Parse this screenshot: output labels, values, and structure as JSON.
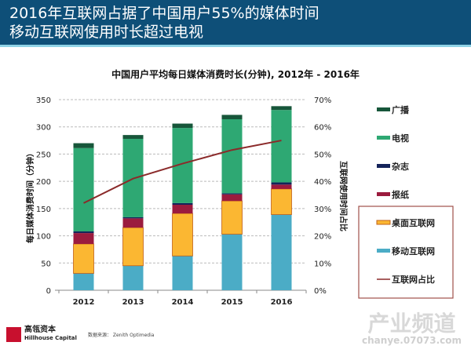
{
  "header": {
    "line1": "2016年互联网占据了中国用户55%的媒体时间",
    "line2": "移动互联网使用时长超过电视"
  },
  "chart_data": {
    "type": "bar",
    "stacked": true,
    "title": "中国用户平均每日媒体消费时长(分钟), 2012年  -  2016年",
    "ylabel": "每日媒体消费时间（分钟）",
    "y2label": "互联网使用时间占比",
    "categories": [
      "2012",
      "2013",
      "2014",
      "2015",
      "2016"
    ],
    "ylim": [
      0,
      350
    ],
    "yticks": [
      "0",
      "50",
      "100",
      "150",
      "200",
      "250",
      "300",
      "350"
    ],
    "y2lim": [
      0,
      70
    ],
    "y2ticks": [
      "0%",
      "10%",
      "20%",
      "30%",
      "40%",
      "50%",
      "60%",
      "70%"
    ],
    "grid": true,
    "legend_position": "right",
    "series": [
      {
        "name": "移动互联网",
        "color": "#4bacc6",
        "values": [
          31,
          45,
          63,
          103,
          139
        ]
      },
      {
        "name": "桌面互联网",
        "color": "#fbb732",
        "values": [
          54,
          70,
          78,
          61,
          47
        ]
      },
      {
        "name": "报纸",
        "color": "#9b1b3e",
        "values": [
          20,
          17,
          16,
          12,
          8
        ]
      },
      {
        "name": "杂志",
        "color": "#14235a",
        "values": [
          3,
          2,
          3,
          2,
          4
        ]
      },
      {
        "name": "电视",
        "color": "#2ea873",
        "values": [
          153,
          144,
          138,
          136,
          133
        ]
      },
      {
        "name": "广播",
        "color": "#17563a",
        "values": [
          9,
          7,
          8,
          8,
          7
        ]
      }
    ],
    "line": {
      "name": "互联网占比",
      "color": "#8b2a2a",
      "axis": "right",
      "values": [
        32,
        41,
        46.5,
        51.5,
        55
      ]
    }
  },
  "footer": {
    "logo_cn": "高瓴资本",
    "logo_en": "Hillhouse Capital",
    "source": "数据来源： Zenith Optimedia"
  },
  "watermark": {
    "main": "产业频道",
    "sub": "chanye.07073.com"
  }
}
